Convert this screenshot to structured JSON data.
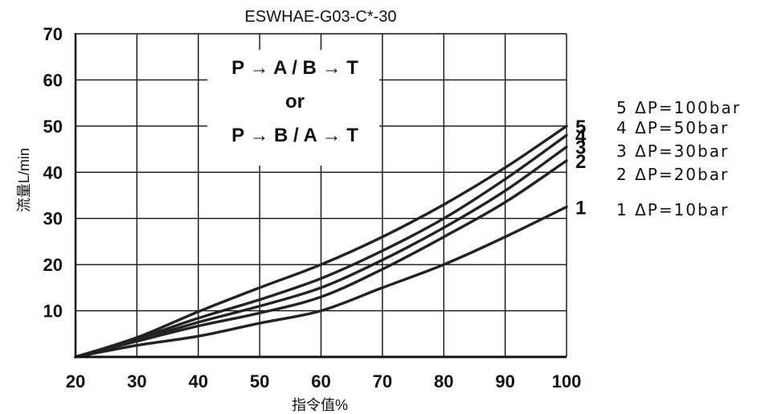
{
  "chart_data": {
    "type": "line",
    "title": "ESWHAE-G03-C*-30",
    "xlabel": "指令值%",
    "ylabel": "流量L/min",
    "xlim": [
      20,
      100
    ],
    "ylim": [
      0,
      70
    ],
    "xticks": [
      "20",
      "30",
      "40",
      "50",
      "60",
      "70",
      "80",
      "90",
      "100"
    ],
    "yticks": [
      "10",
      "20",
      "30",
      "40",
      "50",
      "60",
      "70"
    ],
    "grid": true,
    "annotation_lines": [
      "P → A / B → T",
      "or",
      "P → B / A → T"
    ],
    "series": [
      {
        "name": "1 ΔP=10bar",
        "end_label": "1",
        "x": [
          20,
          30,
          40,
          50,
          60,
          70,
          80,
          90,
          100
        ],
        "y": [
          0,
          2.5,
          4.5,
          7.3,
          10,
          15,
          20,
          26,
          32.5
        ]
      },
      {
        "name": "2 ΔP=20bar",
        "end_label": "2",
        "x": [
          20,
          30,
          40,
          50,
          60,
          70,
          80,
          90,
          100
        ],
        "y": [
          0,
          3.4,
          6.7,
          9.5,
          13,
          19,
          26,
          33.5,
          42.5
        ]
      },
      {
        "name": "3 ΔP=30bar",
        "end_label": "3",
        "x": [
          20,
          30,
          40,
          50,
          60,
          70,
          80,
          90,
          100
        ],
        "y": [
          0,
          3.6,
          7.5,
          11,
          15,
          21,
          28,
          36,
          45.5
        ]
      },
      {
        "name": "4 ΔP=50bar",
        "end_label": "4",
        "x": [
          20,
          30,
          40,
          50,
          60,
          70,
          80,
          90,
          100
        ],
        "y": [
          0,
          3.9,
          8.4,
          12.4,
          17,
          23,
          30,
          38.5,
          48
        ]
      },
      {
        "name": "5 ΔP=100bar",
        "end_label": "5",
        "x": [
          20,
          30,
          40,
          50,
          60,
          70,
          80,
          90,
          100
        ],
        "y": [
          0,
          4.2,
          9.8,
          15,
          20,
          26,
          33,
          41,
          50
        ]
      }
    ]
  }
}
